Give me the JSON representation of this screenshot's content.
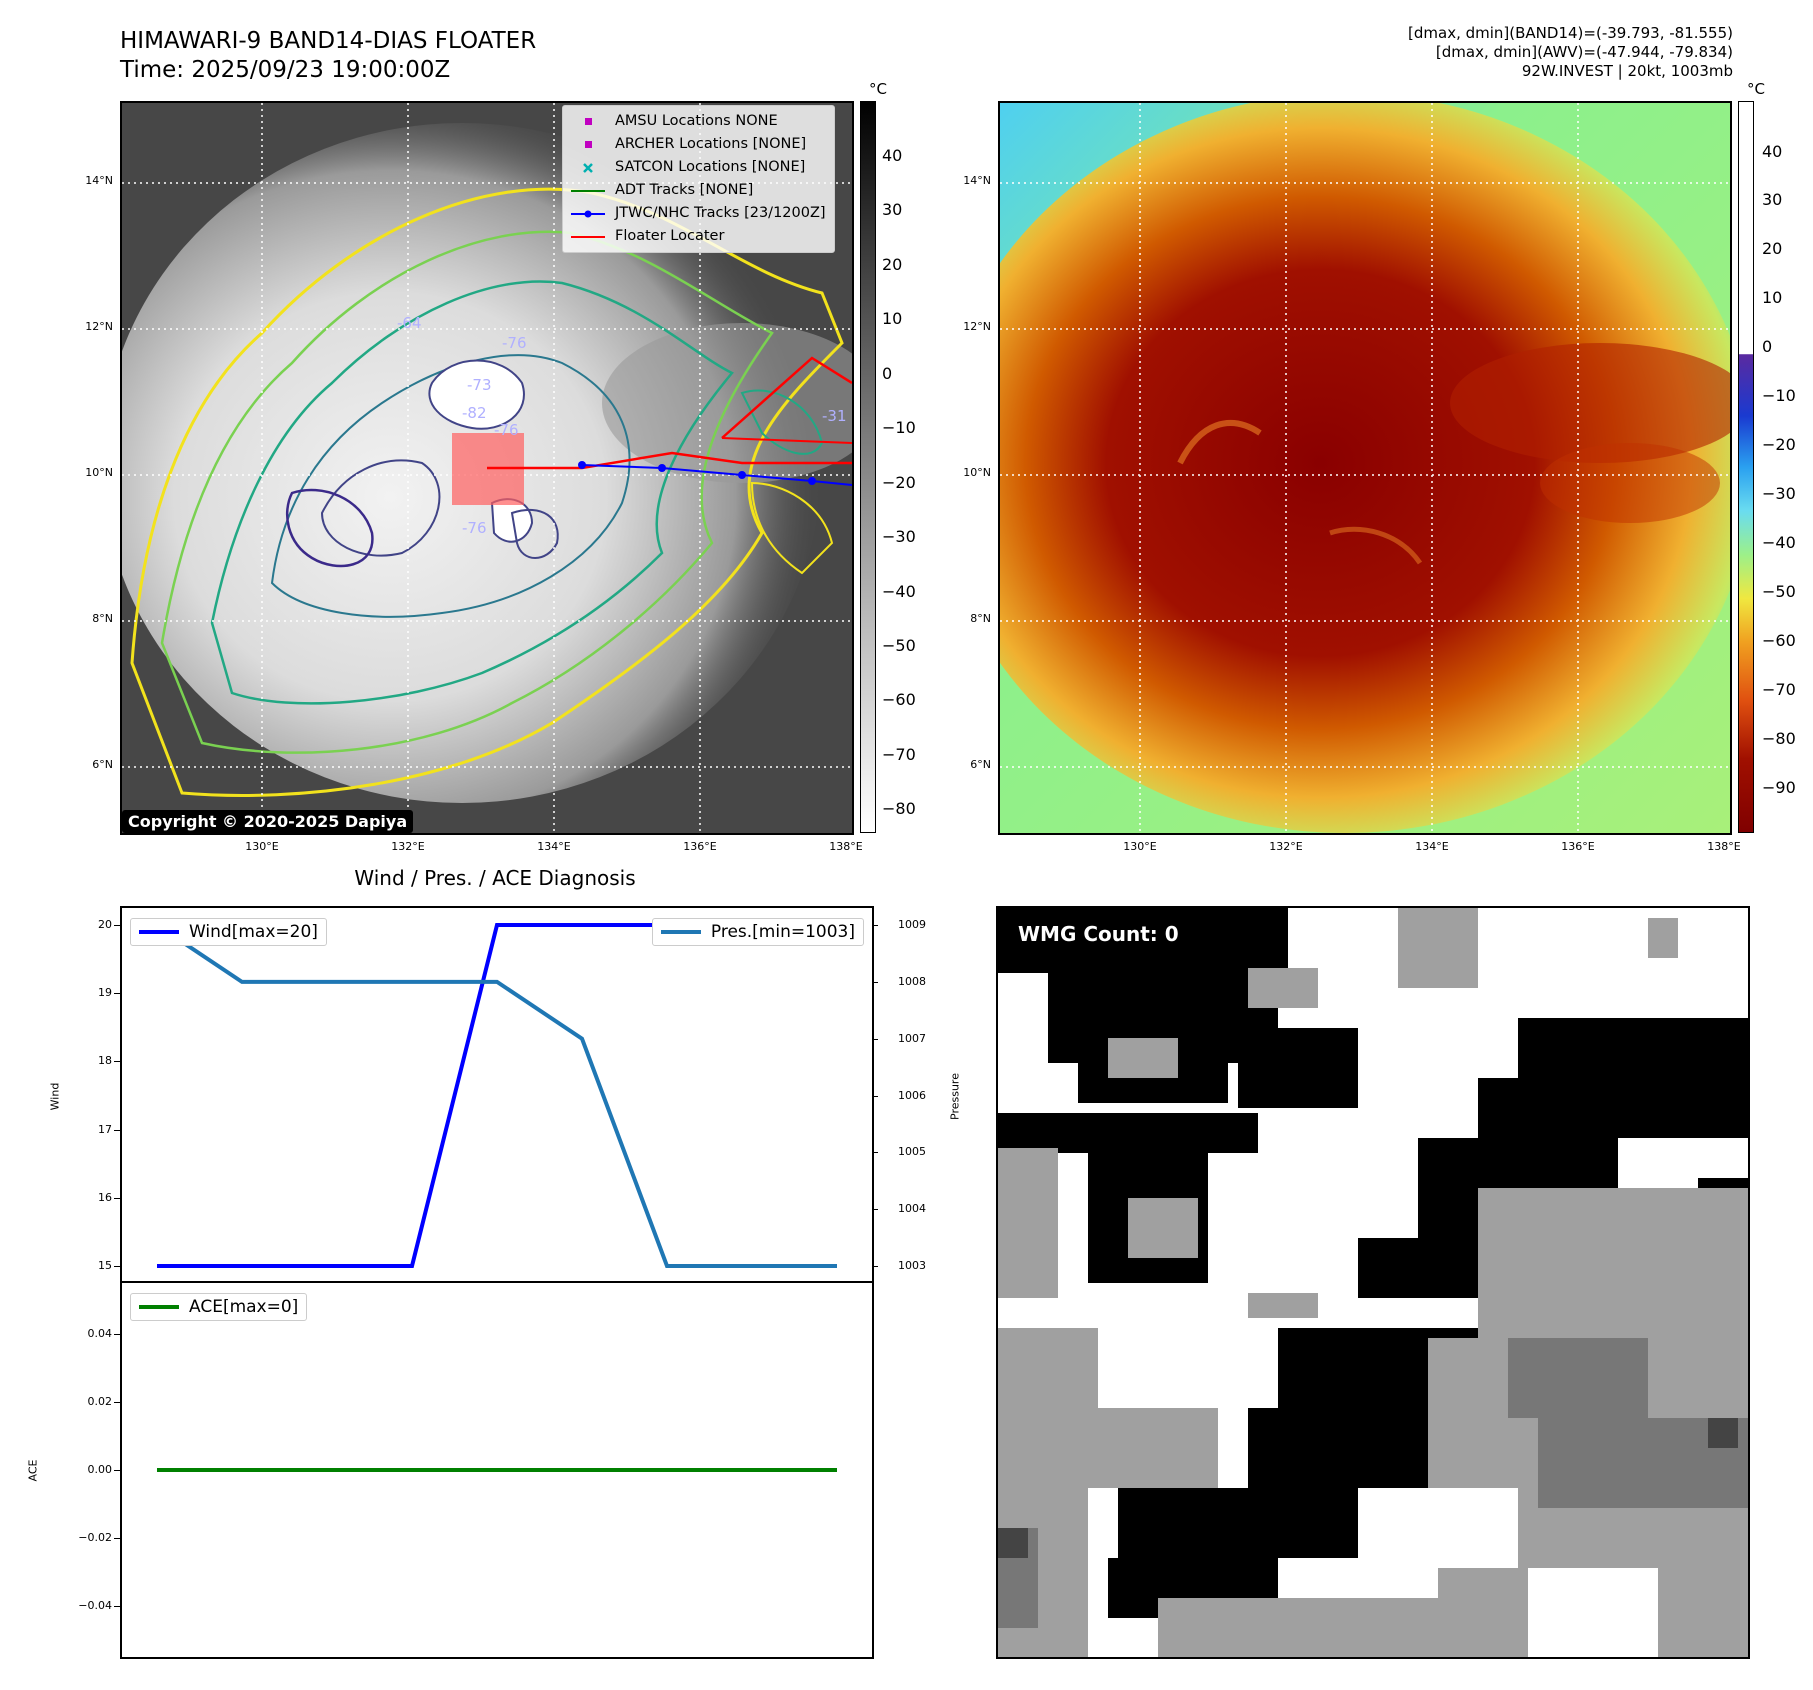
{
  "header": {
    "title_line1": "HIMAWARI-9 BAND14-DIAS FLOATER",
    "title_line2": "Time: 2025/09/23 19:00:00Z",
    "right_line1": "[dmax, dmin](BAND14)=(-39.793, -81.555)",
    "right_line2": "[dmax, dmin](AWV)=(-47.944, -79.834)",
    "right_line3": "92W.INVEST | 20kt, 1003mb"
  },
  "map_axes": {
    "lat_ticks": [
      "14°N",
      "12°N",
      "10°N",
      "8°N",
      "6°N"
    ],
    "lon_ticks": [
      "130°E",
      "132°E",
      "134°E",
      "136°E",
      "138°E"
    ]
  },
  "left_colorbar": {
    "unit": "°C",
    "ticks": [
      "40",
      "30",
      "20",
      "10",
      "0",
      "−10",
      "−20",
      "−30",
      "−40",
      "−50",
      "−60",
      "−70",
      "−80"
    ]
  },
  "right_colorbar": {
    "unit": "°C",
    "ticks": [
      "40",
      "30",
      "20",
      "10",
      "0",
      "−10",
      "−20",
      "−30",
      "−40",
      "−50",
      "−60",
      "−70",
      "−80",
      "−90"
    ]
  },
  "legend": {
    "amsu": "AMSU Locations NONE",
    "archer": "ARCHER Locations [NONE]",
    "satcon": "SATCON Locations [NONE]",
    "adt": "ADT Tracks [NONE]",
    "jtwc": "JTWC/NHC Tracks [23/1200Z]",
    "floater": "Floater Locater"
  },
  "colors": {
    "amsu": "#c000c0",
    "archer": "#c000c0",
    "satcon": "#00b0b0",
    "adt": "#008000",
    "jtwc": "#0000ff",
    "floater": "#ff0000",
    "wind": "#0000ff",
    "pressure": "#1f77b4",
    "ace": "#008000"
  },
  "contour_labels": [
    "-64",
    "-76",
    "-73",
    "-82",
    "-76",
    "-76",
    "-31"
  ],
  "copyright": "Copyright © 2020-2025 Dapiya",
  "diagnosis": {
    "title": "Wind / Pres. / ACE Diagnosis",
    "wind_ylabel": "Wind",
    "pressure_ylabel": "Pressure",
    "ace_ylabel": "ACE",
    "wind_legend": "Wind[max=20]",
    "pressure_legend": "Pres.[min=1003]",
    "ace_legend": "ACE[max=0]",
    "wind_ticks": [
      "20",
      "19",
      "18",
      "17",
      "16",
      "15"
    ],
    "pressure_ticks": [
      "1009",
      "1008",
      "1007",
      "1006",
      "1005",
      "1004",
      "1003"
    ],
    "ace_ticks": [
      "0.04",
      "0.02",
      "0.00",
      "−0.02",
      "−0.04"
    ]
  },
  "wmg": {
    "label": "WMG Count: 0"
  },
  "chart_data": [
    {
      "type": "line",
      "x": [
        0,
        1,
        2,
        3,
        4,
        5,
        6,
        7,
        8
      ],
      "series": [
        {
          "name": "Wind[max=20]",
          "values": [
            15,
            15,
            15,
            15,
            20,
            20,
            20,
            20,
            20
          ]
        }
      ],
      "ylabel": "Wind",
      "ylim": [
        14.75,
        20.25
      ]
    },
    {
      "type": "line",
      "x": [
        0,
        1,
        2,
        3,
        4,
        5,
        6,
        7,
        8
      ],
      "series": [
        {
          "name": "Pres.[min=1003]",
          "values": [
            1009,
            1008,
            1008,
            1008,
            1008,
            1007,
            1003,
            1003,
            1003
          ]
        }
      ],
      "ylabel": "Pressure",
      "ylim": [
        1002.7,
        1009.3
      ]
    },
    {
      "type": "line",
      "x": [
        0,
        1,
        2,
        3,
        4,
        5,
        6,
        7,
        8
      ],
      "series": [
        {
          "name": "ACE[max=0]",
          "values": [
            0,
            0,
            0,
            0,
            0,
            0,
            0,
            0,
            0
          ]
        }
      ],
      "ylabel": "ACE",
      "ylim": [
        -0.055,
        0.055
      ]
    }
  ]
}
